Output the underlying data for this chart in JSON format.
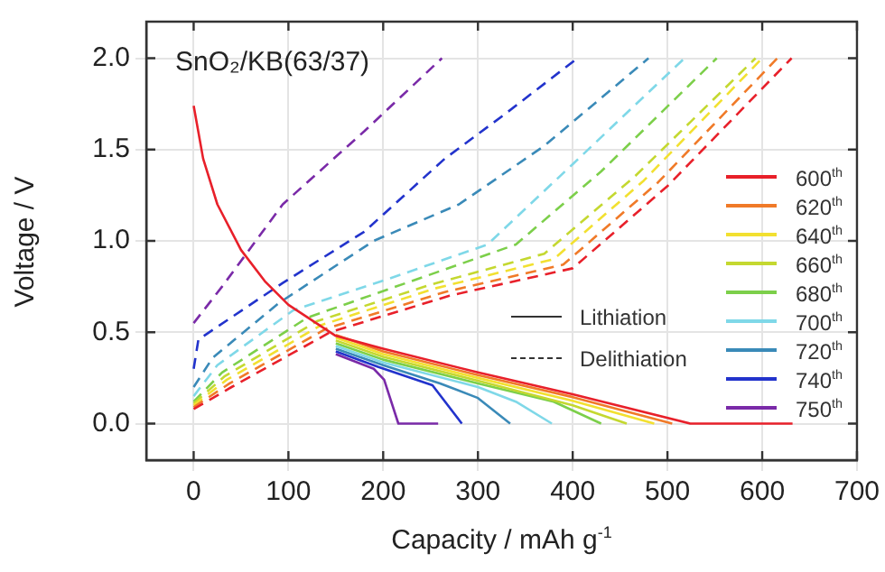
{
  "chart_data": {
    "type": "line",
    "title": "SnO₂/KB(63/37)",
    "xlabel": "Capacity / mAh g$^{-1}$",
    "ylabel": "Voltage / V",
    "xlim": [
      -50,
      700
    ],
    "xticks": [
      0,
      100,
      200,
      300,
      400,
      500,
      600,
      700
    ],
    "ylim": [
      -0.2,
      2.2
    ],
    "yticks": [
      {
        "value": 0,
        "label": "0.0"
      },
      {
        "value": 0.5,
        "label": "0.5"
      },
      {
        "value": 1,
        "label": "1.0"
      },
      {
        "value": 1.5,
        "label": "1.5"
      },
      {
        "value": 2,
        "label": "2.0"
      }
    ],
    "grid": true,
    "legend": "right",
    "marker": "none",
    "line_style": "solid",
    "annotations": [
      "Lithiation",
      "Delithiation"
    ],
    "series": [
      {
        "name": "600$^{th}$",
        "color": "#e8202a",
        "x": [
          0,
          10,
          25,
          50,
          75,
          100,
          150,
          200,
          300,
          400,
          524,
          632
        ],
        "values": [
          1.74,
          1.45,
          1.2,
          0.95,
          0.78,
          0.65,
          0.48,
          0.41,
          0.28,
          0.16,
          0,
          0
        ]
      },
      {
        "name": "620$^{th}$",
        "color": "#f07a28",
        "x": [
          150,
          200,
          300,
          400,
          505
        ],
        "values": [
          0.485,
          0.395,
          0.265,
          0.145,
          0
        ]
      },
      {
        "name": "640$^{th}$",
        "color": "#f2e030",
        "x": [
          150,
          200,
          300,
          400,
          486
        ],
        "values": [
          0.47,
          0.38,
          0.25,
          0.125,
          0
        ]
      },
      {
        "name": "660$^{th}$",
        "color": "#c4d830",
        "x": [
          150,
          200,
          300,
          400,
          457
        ],
        "values": [
          0.455,
          0.365,
          0.235,
          0.1,
          0
        ]
      },
      {
        "name": "680$^{th}$",
        "color": "#7ccf4a",
        "x": [
          150,
          200,
          300,
          380,
          430
        ],
        "values": [
          0.44,
          0.35,
          0.22,
          0.12,
          0
        ]
      },
      {
        "name": "700$^{th}$",
        "color": "#7fd8e8",
        "x": [
          150,
          200,
          300,
          340,
          378
        ],
        "values": [
          0.425,
          0.335,
          0.2,
          0.12,
          0
        ]
      },
      {
        "name": "720$^{th}$",
        "color": "#3a8ab8",
        "x": [
          150,
          200,
          260,
          300,
          334
        ],
        "values": [
          0.41,
          0.32,
          0.22,
          0.14,
          0
        ]
      },
      {
        "name": "740$^{th}$",
        "color": "#2233cc",
        "x": [
          150,
          195,
          252,
          283
        ],
        "values": [
          0.395,
          0.31,
          0.21,
          0
        ]
      },
      {
        "name": "750$^{th}$",
        "color": "#7a2aa8",
        "x": [
          150,
          190,
          201,
          216,
          258
        ],
        "values": [
          0.38,
          0.3,
          0.24,
          0,
          0
        ]
      },
      {
        "color": "#e8202a",
        "line_style": "dashed",
        "x": [
          0,
          40,
          144,
          270,
          400,
          500,
          631
        ],
        "values": [
          0.08,
          0.2,
          0.5,
          0.7,
          0.85,
          1.3,
          2.0
        ]
      },
      {
        "color": "#f07a28",
        "line_style": "dashed",
        "x": [
          0,
          38,
          140,
          265,
          390,
          490,
          616
        ],
        "values": [
          0.09,
          0.22,
          0.52,
          0.72,
          0.87,
          1.32,
          2.0
        ]
      },
      {
        "color": "#f2e030",
        "line_style": "dashed",
        "x": [
          0,
          35,
          135,
          255,
          380,
          475,
          600
        ],
        "values": [
          0.1,
          0.24,
          0.54,
          0.74,
          0.9,
          1.33,
          2.0
        ]
      },
      {
        "color": "#c4d830",
        "line_style": "dashed",
        "x": [
          0,
          33,
          130,
          250,
          370,
          465,
          593
        ],
        "values": [
          0.11,
          0.26,
          0.56,
          0.76,
          0.93,
          1.35,
          2.0
        ]
      },
      {
        "color": "#7ccf4a",
        "line_style": "dashed",
        "x": [
          0,
          30,
          120,
          230,
          340,
          430,
          552
        ],
        "values": [
          0.12,
          0.28,
          0.58,
          0.78,
          0.98,
          1.38,
          2.0
        ]
      },
      {
        "color": "#7fd8e8",
        "line_style": "dashed",
        "x": [
          0,
          25,
          105,
          210,
          310,
          400,
          518
        ],
        "values": [
          0.15,
          0.32,
          0.62,
          0.8,
          0.98,
          1.42,
          2.0
        ]
      },
      {
        "color": "#3a8ab8",
        "line_style": "dashed",
        "x": [
          0,
          20,
          90,
          190,
          280,
          370,
          480
        ],
        "values": [
          0.2,
          0.36,
          0.66,
          1.0,
          1.2,
          1.52,
          2.0
        ]
      },
      {
        "color": "#2233cc",
        "line_style": "dashed",
        "x": [
          0,
          5,
          94,
          180,
          265,
          330,
          405
        ],
        "values": [
          0.3,
          0.46,
          0.77,
          1.05,
          1.45,
          1.7,
          2.0
        ]
      },
      {
        "color": "#7a2aa8",
        "line_style": "dashed",
        "x": [
          0,
          30,
          94,
          180,
          262
        ],
        "values": [
          0.55,
          0.75,
          1.2,
          1.6,
          2.0
        ]
      }
    ]
  }
}
